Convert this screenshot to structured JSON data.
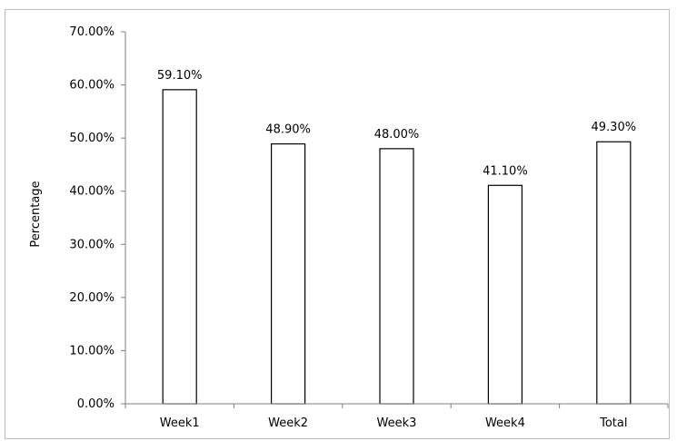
{
  "chart_data": {
    "type": "bar",
    "categories": [
      "Week1",
      "Week2",
      "Week3",
      "Week4",
      "Total"
    ],
    "values": [
      59.1,
      48.9,
      48.0,
      41.1,
      49.3
    ],
    "value_labels": [
      "59.10%",
      "48.90%",
      "48.00%",
      "41.10%",
      "49.30%"
    ],
    "title": "",
    "xlabel": "",
    "ylabel": "Percentage",
    "ylim": [
      0,
      70
    ],
    "yticks": [
      0,
      10,
      20,
      30,
      40,
      50,
      60,
      70
    ],
    "ytick_labels": [
      "0.00%",
      "10.00%",
      "20.00%",
      "30.00%",
      "40.00%",
      "50.00%",
      "60.00%",
      "70.00%"
    ],
    "grid": false,
    "legend": "none",
    "colors": {
      "bar_fill": "#ffffff",
      "bar_stroke": "#000000",
      "axis": "#808080"
    }
  }
}
